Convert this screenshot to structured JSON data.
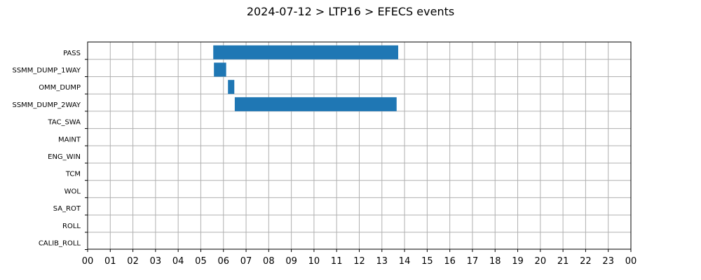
{
  "chart_data": {
    "type": "bar",
    "title": "2024-07-12 > LTP16 > EFECS events",
    "xlabel": "",
    "ylabel": "",
    "categories": [
      "PASS",
      "SSMM_DUMP_1WAY",
      "OMM_DUMP",
      "SSMM_DUMP_2WAY",
      "TAC_SWA",
      "MAINT",
      "ENG_WIN",
      "TCM",
      "WOL",
      "SA_ROT",
      "ROLL",
      "CALIB_ROLL"
    ],
    "x_ticks": [
      "00",
      "01",
      "02",
      "03",
      "04",
      "05",
      "06",
      "07",
      "08",
      "09",
      "10",
      "11",
      "12",
      "13",
      "14",
      "15",
      "16",
      "17",
      "18",
      "19",
      "20",
      "21",
      "22",
      "23",
      "00"
    ],
    "xlim": [
      0,
      24
    ],
    "grid": true,
    "bar_color": "#1f77b4",
    "series": [
      {
        "values": [
          {
            "category": "PASS",
            "start": 5.55,
            "end": 13.72
          },
          {
            "category": "SSMM_DUMP_1WAY",
            "start": 5.58,
            "end": 6.12
          },
          {
            "category": "OMM_DUMP",
            "start": 6.2,
            "end": 6.48
          },
          {
            "category": "SSMM_DUMP_2WAY",
            "start": 6.5,
            "end": 13.65
          }
        ]
      }
    ]
  }
}
